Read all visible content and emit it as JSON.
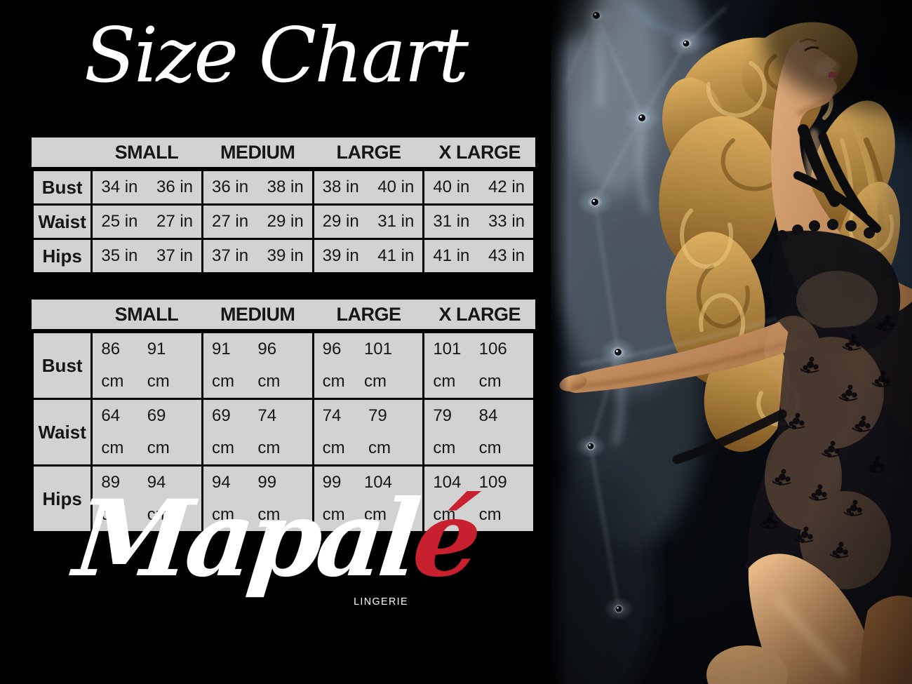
{
  "title": "Size Chart",
  "brand": {
    "name_main": "Mapal",
    "name_accent": "é",
    "tagline": "LINGERIE",
    "accent_color": "#c8202e"
  },
  "size_tables": [
    {
      "id": "inches",
      "columns": [
        "SMALL",
        "MEDIUM",
        "LARGE",
        "X LARGE"
      ],
      "rows": [
        {
          "label": "Bust",
          "values": [
            [
              "34 in",
              "36 in"
            ],
            [
              "36 in",
              "38 in"
            ],
            [
              "38 in",
              "40 in"
            ],
            [
              "40 in",
              "42 in"
            ]
          ]
        },
        {
          "label": "Waist",
          "values": [
            [
              "25 in",
              "27 in"
            ],
            [
              "27 in",
              "29 in"
            ],
            [
              "29 in",
              "31 in"
            ],
            [
              "31 in",
              "33 in"
            ]
          ]
        },
        {
          "label": "Hips",
          "values": [
            [
              "35 in",
              "37 in"
            ],
            [
              "37 in",
              "39 in"
            ],
            [
              "39 in",
              "41 in"
            ],
            [
              "41 in",
              "43 in"
            ]
          ]
        }
      ]
    },
    {
      "id": "centimeters",
      "columns": [
        "SMALL",
        "MEDIUM",
        "LARGE",
        "X LARGE"
      ],
      "rows": [
        {
          "label": "Bust",
          "values": [
            [
              "86 cm",
              "91 cm"
            ],
            [
              "91 cm",
              "96 cm"
            ],
            [
              "96 cm",
              "101 cm"
            ],
            [
              "101 cm",
              "106 cm"
            ]
          ]
        },
        {
          "label": "Waist",
          "values": [
            [
              "64 cm",
              "69 cm"
            ],
            [
              "69 cm",
              "74 cm"
            ],
            [
              "74 cm",
              "79 cm"
            ],
            [
              "79 cm",
              "84 cm"
            ]
          ]
        },
        {
          "label": "Hips",
          "values": [
            [
              "89 cm",
              "94 cm"
            ],
            [
              "94 cm",
              "99 cm"
            ],
            [
              "99 cm",
              "104 cm"
            ],
            [
              "104 cm",
              "109 cm"
            ]
          ]
        }
      ]
    }
  ],
  "colors": {
    "background": "#000000",
    "table_cell": "#d2d2d2",
    "table_border": "#000000",
    "table_text": "#161616",
    "title_text": "#ffffff",
    "accent_red": "#c8202e"
  }
}
